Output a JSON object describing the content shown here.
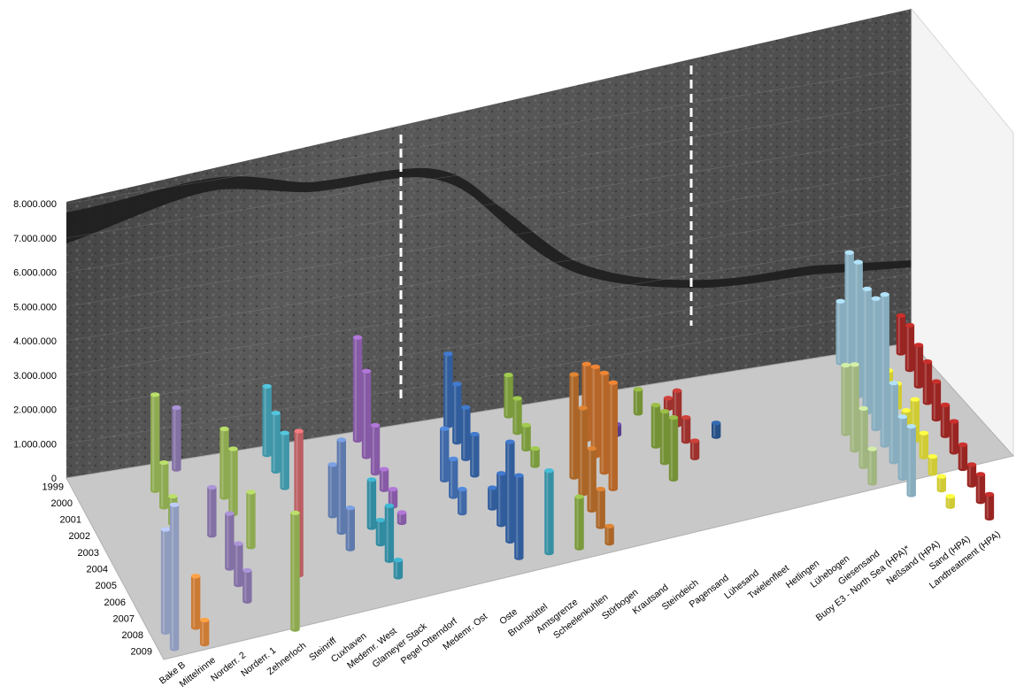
{
  "chart_data": {
    "type": "bar",
    "variant": "3d-cylinder",
    "title": "",
    "xlabel": "",
    "ylabel": "",
    "ylim": [
      0,
      8000000
    ],
    "y_ticks": [
      "0",
      "1.000.000",
      "2.000.000",
      "3.000.000",
      "4.000.000",
      "5.000.000",
      "6.000.000",
      "7.000.000",
      "8.000.000"
    ],
    "years": [
      "1999",
      "2000",
      "2001",
      "2002",
      "2003",
      "2004",
      "2005",
      "2006",
      "2007",
      "2008",
      "2009"
    ],
    "background": "satellite image of the Elbe estuary on the back wall",
    "stations": [
      {
        "name": "Bake B",
        "color": "#a9b7e0",
        "values": [
          0,
          0,
          0,
          0,
          0,
          0,
          0,
          0,
          0,
          3000000,
          4200000
        ]
      },
      {
        "name": "Mittelrinne",
        "color": "#f0913e",
        "values": [
          0,
          0,
          0,
          0,
          0,
          0,
          0,
          0,
          0,
          1500000,
          700000
        ]
      },
      {
        "name": "Norderr. 2",
        "color": "#a7c85f",
        "values": [
          0,
          2800000,
          1300000,
          800000,
          0,
          0,
          0,
          0,
          0,
          0,
          0
        ]
      },
      {
        "name": "Norderr. 1",
        "color": "#9a84c1",
        "values": [
          1800000,
          0,
          0,
          0,
          1400000,
          0,
          1600000,
          1200000,
          900000,
          0,
          0
        ]
      },
      {
        "name": "Zehnerloch",
        "color": "#a7c85f",
        "values": [
          0,
          0,
          2000000,
          1900000,
          0,
          1600000,
          0,
          0,
          0,
          0,
          3400000
        ]
      },
      {
        "name": "Steinriff",
        "color": "#dc6f73",
        "values": [
          0,
          0,
          0,
          0,
          0,
          0,
          0,
          4200000,
          0,
          0,
          0
        ]
      },
      {
        "name": "Cuxhaven",
        "color": "#4ab1c6",
        "values": [
          2000000,
          1700000,
          1600000,
          0,
          0,
          0,
          0,
          0,
          0,
          0,
          0
        ]
      },
      {
        "name": "Medemr. West",
        "color": "#6f90cc",
        "values": [
          0,
          0,
          0,
          0,
          1500000,
          2700000,
          1200000,
          0,
          0,
          0,
          0
        ]
      },
      {
        "name": "Glameyer Stack",
        "color": "#3aa4bd",
        "values": [
          0,
          0,
          0,
          0,
          0,
          1400000,
          700000,
          1600000,
          500000,
          0,
          0
        ]
      },
      {
        "name": "Pegel Otterndorf",
        "color": "#9e6ac2",
        "values": [
          3000000,
          2500000,
          1400000,
          600000,
          500000,
          300000,
          0,
          0,
          0,
          0,
          0
        ]
      },
      {
        "name": "Medemr. Ost",
        "color": "#7a55b0",
        "values": [
          0,
          0,
          0,
          0,
          0,
          0,
          0,
          0,
          0,
          0,
          0
        ]
      },
      {
        "name": "Oste",
        "color": "#4a7cc6",
        "values": [
          0,
          0,
          0,
          1500000,
          1100000,
          700000,
          0,
          0,
          0,
          0,
          0
        ]
      },
      {
        "name": "Brunsbüttel",
        "color": "#3a6db8",
        "values": [
          2100000,
          1700000,
          1500000,
          1200000,
          0,
          600000,
          1500000,
          2900000,
          2400000,
          0,
          0
        ]
      },
      {
        "name": "Amtsgrenze",
        "color": "#40a9c0",
        "values": [
          0,
          0,
          0,
          0,
          0,
          0,
          0,
          0,
          2400000,
          0,
          0
        ]
      },
      {
        "name": "Scheelenkuhlen",
        "color": "#8fb547",
        "values": [
          1200000,
          1000000,
          700000,
          500000,
          0,
          0,
          0,
          0,
          1500000,
          0,
          0
        ]
      },
      {
        "name": "Störbogen",
        "color": "#c9782e",
        "values": [
          0,
          0,
          0,
          0,
          3000000,
          2500000,
          1800000,
          1100000,
          500000,
          0,
          0
        ]
      },
      {
        "name": "Krautsand",
        "color": "#d6782f",
        "values": [
          0,
          0,
          2200000,
          2600000,
          2900000,
          3100000,
          0,
          0,
          0,
          0,
          0
        ]
      },
      {
        "name": "Steindeich",
        "color": "#6a4aa0",
        "values": [
          400000,
          0,
          300000,
          0,
          0,
          0,
          0,
          0,
          0,
          0,
          0
        ]
      },
      {
        "name": "Pagensand",
        "color": "#8aaa3f",
        "values": [
          0,
          700000,
          0,
          1200000,
          1500000,
          1800000,
          0,
          0,
          0,
          0,
          0
        ]
      },
      {
        "name": "Lühesand",
        "color": "#b93a35",
        "values": [
          0,
          300000,
          1000000,
          700000,
          500000,
          0,
          0,
          0,
          0,
          0,
          0
        ]
      },
      {
        "name": "Twielenfleet",
        "color": "#2e5f9e",
        "values": [
          0,
          0,
          0,
          400000,
          0,
          0,
          0,
          0,
          0,
          0,
          0
        ]
      },
      {
        "name": "Hetlingen",
        "color": "#b93a35",
        "values": [
          0,
          0,
          0,
          0,
          0,
          0,
          0,
          0,
          0,
          0,
          0
        ]
      },
      {
        "name": "Lühebogen",
        "color": "#6e8a3a",
        "values": [
          0,
          0,
          0,
          0,
          0,
          0,
          0,
          0,
          0,
          0,
          0
        ]
      },
      {
        "name": "Giesensand",
        "color": "#2e5f9e",
        "values": [
          0,
          0,
          0,
          0,
          0,
          0,
          0,
          0,
          0,
          0,
          0
        ]
      },
      {
        "name": "Buoy E3 - North Sea (HPA)*",
        "color": "#bcd595",
        "values": [
          0,
          0,
          0,
          0,
          2000000,
          2500000,
          1700000,
          1000000,
          0,
          0,
          0
        ]
      },
      {
        "name": "Neßsand (HPA)",
        "color": "#9fcbe0",
        "values": [
          1800000,
          3700000,
          3900000,
          3600000,
          3800000,
          4400000,
          2300000,
          1800000,
          2000000,
          0,
          0
        ]
      },
      {
        "name": "Sand (HPA)",
        "color": "#f5ef3d",
        "values": [
          600000,
          500000,
          600000,
          700000,
          400000,
          1200000,
          700000,
          500000,
          400000,
          300000,
          0
        ]
      },
      {
        "name": "Landtreatment (HPA)",
        "color": "#b42b28",
        "values": [
          1100000,
          1300000,
          1200000,
          1200000,
          1100000,
          900000,
          900000,
          700000,
          600000,
          800000,
          700000
        ]
      }
    ]
  }
}
